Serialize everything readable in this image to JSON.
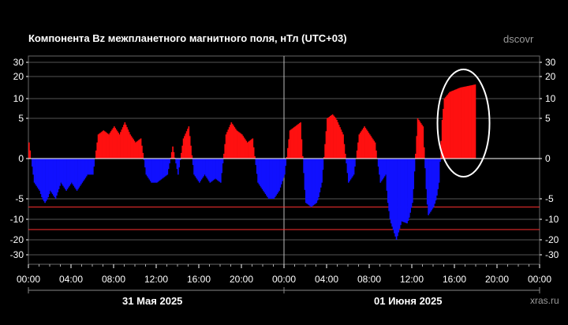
{
  "header": {
    "title": "Компонента Bz межпланетного магнитного поля, нТл (UTC+03)",
    "source": "dscovr",
    "footer_source": "xras.ru"
  },
  "chart_data": {
    "type": "bar",
    "title": "Компонента Bz межпланетного магнитного поля, нТл (UTC+03)",
    "xlabel": "",
    "ylabel": "",
    "yscale": "nonlinear (symmetric, compressed above |5|)",
    "ylim": [
      -30,
      30
    ],
    "yticks": [
      30,
      20,
      10,
      5,
      0,
      -5,
      -10,
      -20,
      -30
    ],
    "ytick_labels": [
      "30",
      "20",
      "10",
      "5",
      "0",
      "-5",
      "-10",
      "-20",
      "-30"
    ],
    "xlim_hours": [
      0,
      48
    ],
    "xtick_labels": [
      "00:00",
      "04:00",
      "08:00",
      "12:00",
      "16:00",
      "20:00",
      "00:00",
      "04:00",
      "08:00",
      "12:00",
      "16:00",
      "20:00",
      "00:00"
    ],
    "date_labels": [
      "31 Мая 2025",
      "01 Июня 2025"
    ],
    "reference_lines": [
      -7,
      -15
    ],
    "grid": true,
    "legend": "none",
    "colors": {
      "positive": "#ff1010",
      "negative": "#1010ff",
      "reference": "#ff3030",
      "grid": "#555555"
    },
    "annotation": "white ellipse around 16:00-18:00 on 01 June",
    "series": [
      {
        "hour": [
          0,
          0.5,
          1,
          1.5,
          2,
          2.5,
          3,
          3.5,
          4,
          4.5,
          5,
          5.5,
          6,
          6.5,
          7,
          7.5,
          8,
          8.5,
          9,
          9.5,
          10,
          10.5,
          11,
          11.5,
          12,
          12.5,
          13,
          13.5,
          14,
          14.5,
          15,
          15.5,
          16,
          16.5,
          17,
          17.5,
          18,
          18.5,
          19,
          19.5,
          20,
          20.5,
          21,
          21.5,
          22,
          22.5,
          23,
          23.5,
          24,
          24.5,
          25,
          25.5,
          26,
          26.5,
          27,
          27.5,
          28,
          28.5,
          29,
          29.5,
          30,
          30.5,
          31,
          31.5,
          32,
          32.5,
          33,
          33.5,
          34,
          34.5,
          35,
          35.5,
          36,
          36.5,
          37,
          37.5,
          38,
          38.5,
          39,
          39.5,
          40,
          40.5,
          41,
          41.5,
          42
        ],
        "bz_nT": [
          2,
          -3,
          -4,
          -6,
          -4,
          -5,
          -3,
          -4,
          -3,
          -4,
          -3,
          -2,
          -2,
          3,
          3.5,
          3,
          4,
          3,
          4.5,
          3,
          2,
          2.5,
          -2,
          -3,
          -3,
          -2.5,
          -2,
          1.5,
          -2,
          2.5,
          4,
          -2,
          -3,
          -2,
          -3,
          -2.5,
          -3,
          3,
          4.5,
          3.5,
          3,
          2,
          2.5,
          -3,
          -4,
          -5,
          -5,
          -4,
          -2,
          3.5,
          4,
          4.5,
          -6,
          -7,
          -6,
          -3,
          5,
          6,
          4.5,
          3,
          -3,
          -2,
          3,
          4,
          3,
          2,
          -3,
          -2,
          -12,
          -20,
          -11,
          -12,
          -6,
          5,
          4,
          -9,
          -7,
          -3,
          10,
          13,
          14,
          15,
          15.5,
          16,
          16.5
        ]
      }
    ]
  }
}
